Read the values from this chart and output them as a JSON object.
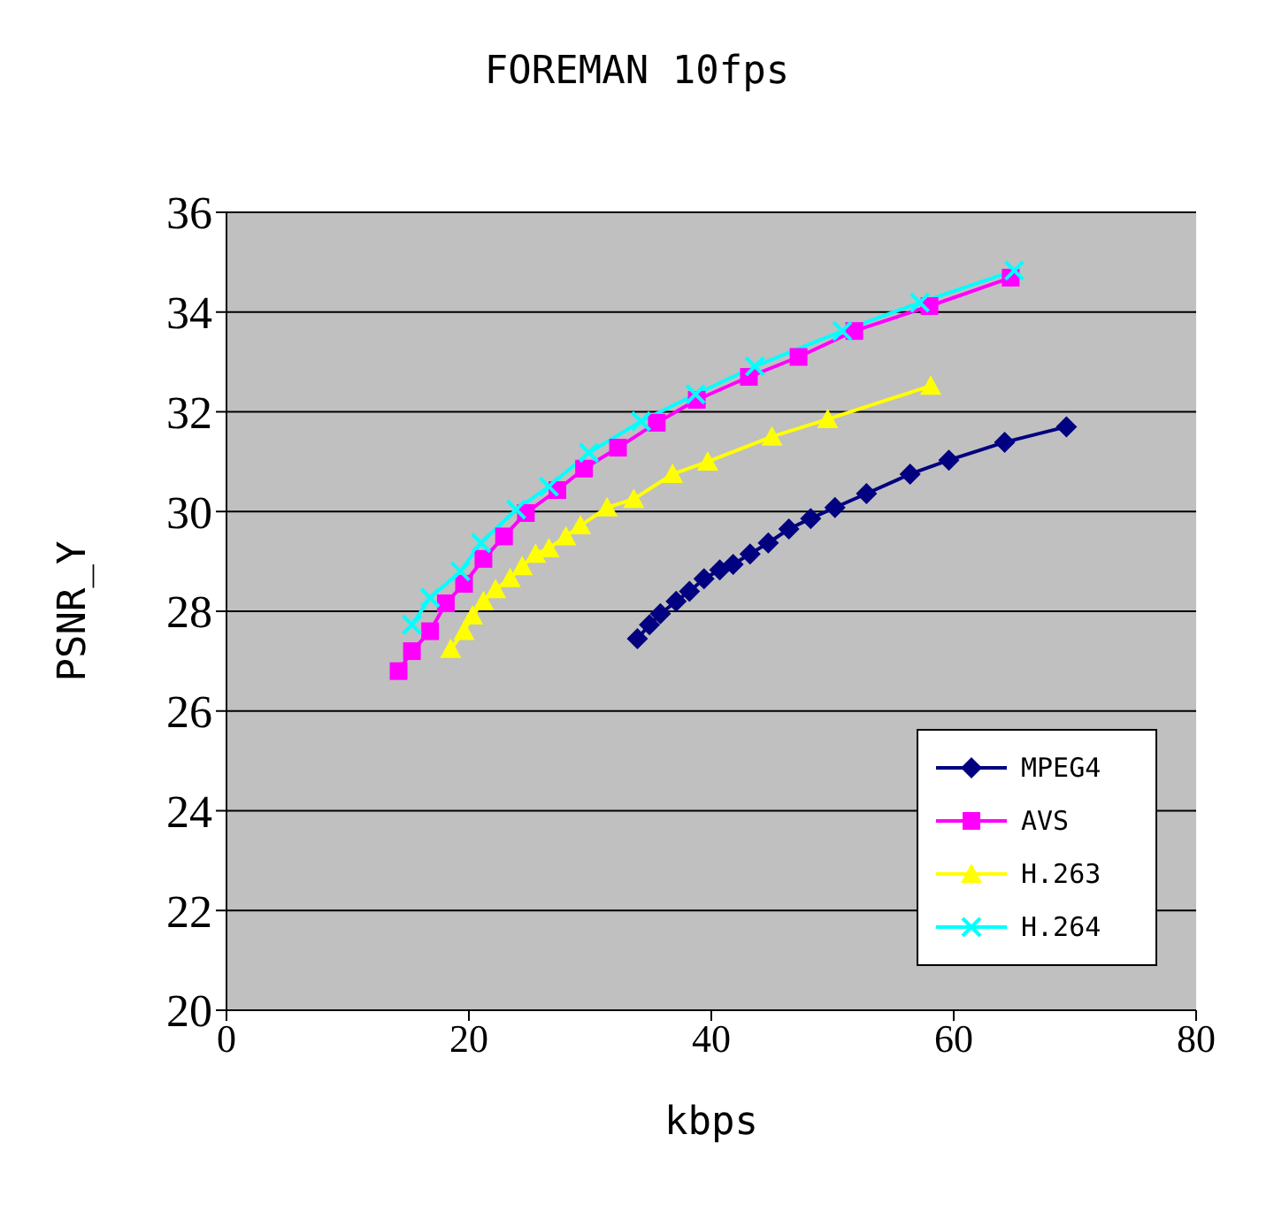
{
  "chart_data": {
    "type": "line",
    "title": "FOREMAN 10fps",
    "xlabel": "kbps",
    "ylabel": "PSNR_Y",
    "xlim": [
      0,
      80
    ],
    "xticks": [
      0,
      20,
      40,
      60,
      80
    ],
    "ylim": [
      20,
      36
    ],
    "yticks": [
      20,
      22,
      24,
      26,
      28,
      30,
      32,
      34,
      36
    ],
    "grid": "y",
    "legend": "bottom right",
    "series": [
      {
        "name": "MPEG4",
        "color": "#000080",
        "marker": "diamond",
        "x": [
          33.9,
          34.9,
          35.8,
          37.1,
          38.2,
          39.4,
          40.7,
          41.8,
          43.2,
          44.7,
          46.4,
          48.2,
          50.2,
          52.8,
          56.4,
          59.6,
          64.2,
          69.3
        ],
        "values": [
          27.45,
          27.73,
          27.95,
          28.2,
          28.4,
          28.65,
          28.83,
          28.94,
          29.15,
          29.37,
          29.65,
          29.86,
          30.08,
          30.36,
          30.75,
          31.03,
          31.39,
          31.7
        ]
      },
      {
        "name": "AVS",
        "color": "#ff00ff",
        "marker": "square",
        "x": [
          14.2,
          15.3,
          16.8,
          18.1,
          19.6,
          21.2,
          22.9,
          24.7,
          27.3,
          29.5,
          32.3,
          35.5,
          38.8,
          43.1,
          47.2,
          51.8,
          58.0,
          64.7
        ],
        "values": [
          26.8,
          27.2,
          27.6,
          28.16,
          28.55,
          29.05,
          29.5,
          29.97,
          30.43,
          30.86,
          31.28,
          31.78,
          32.24,
          32.7,
          33.1,
          33.62,
          34.12,
          34.69
        ]
      },
      {
        "name": "H.263",
        "color": "#ffff00",
        "marker": "triangle",
        "x": [
          18.5,
          19.6,
          20.3,
          21.2,
          22.2,
          23.4,
          24.4,
          25.5,
          26.6,
          28.0,
          29.2,
          31.4,
          33.6,
          36.8,
          39.7,
          45.0,
          49.6,
          58.1
        ],
        "values": [
          27.24,
          27.6,
          27.91,
          28.2,
          28.44,
          28.66,
          28.9,
          29.15,
          29.26,
          29.5,
          29.72,
          30.08,
          30.25,
          30.75,
          31.0,
          31.5,
          31.85,
          32.52
        ]
      },
      {
        "name": "H.264",
        "color": "#00ffff",
        "marker": "cross",
        "x": [
          15.3,
          16.8,
          19.3,
          21.0,
          23.9,
          26.6,
          29.9,
          34.2,
          38.7,
          43.6,
          50.8,
          57.2,
          65.0
        ],
        "values": [
          27.73,
          28.27,
          28.8,
          29.37,
          30.04,
          30.5,
          31.18,
          31.81,
          32.35,
          32.91,
          33.62,
          34.19,
          34.83
        ]
      }
    ]
  }
}
